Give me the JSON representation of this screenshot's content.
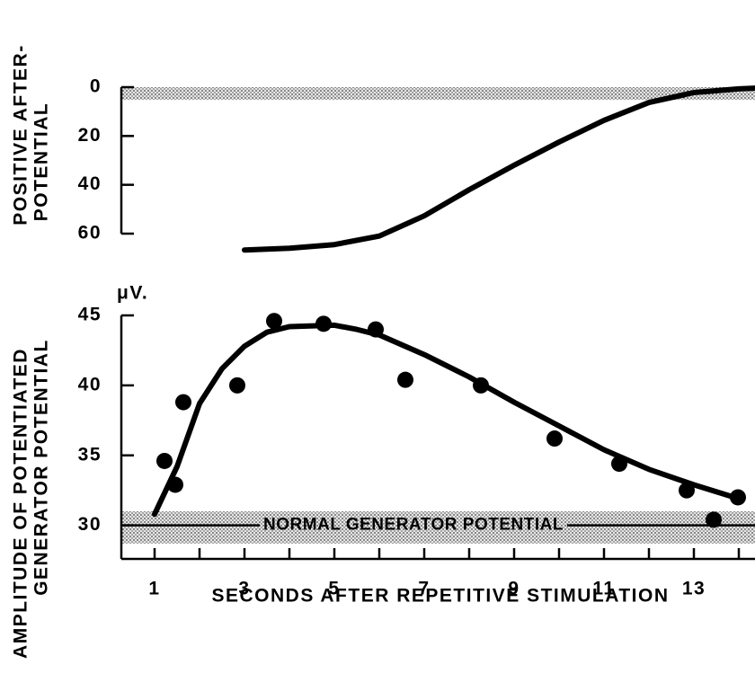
{
  "chart_data": [
    {
      "type": "line",
      "ylabel": [
        "POSITIVE AFTER-",
        "POTENTIAL"
      ],
      "xlim": [
        0.26,
        14.36
      ],
      "ylim": [
        0,
        60
      ],
      "y_inverted": true,
      "yticks": [
        0,
        20,
        40,
        60
      ],
      "band": [
        0,
        5.2
      ],
      "color": "#000000",
      "x": [
        3,
        4,
        5,
        6,
        7,
        8,
        9,
        10,
        11,
        12,
        13,
        14,
        14.36
      ],
      "values": [
        66.7,
        66,
        64.5,
        61,
        52.7,
        42,
        32,
        22.5,
        13.6,
        6.3,
        2.2,
        0.7,
        0.4
      ]
    },
    {
      "type": "scatter",
      "ylabel": [
        "AMPLITUDE OF POTENTIATED",
        "GENERATOR POTENTIAL"
      ],
      "unit": "μV.",
      "xlabel": "SECONDS AFTER REPETITIVE STIMULATION",
      "xlim": [
        0.26,
        14.36
      ],
      "ylim": [
        27.6,
        45
      ],
      "xticks": [
        1,
        3,
        5,
        7,
        9,
        11,
        13
      ],
      "xminorticks": [
        2,
        4,
        6,
        8,
        10,
        12,
        14
      ],
      "yticks": [
        30,
        35,
        40,
        45
      ],
      "band": [
        28.7,
        31
      ],
      "reference_line": {
        "value": 30,
        "label": "NORMAL GENERATOR POTENTIAL"
      },
      "color": "#000000",
      "points": {
        "x": [
          1.22,
          1.46,
          1.64,
          2.84,
          3.66,
          4.76,
          5.92,
          6.58,
          8.26,
          9.9,
          11.34,
          12.84,
          13.44,
          13.98
        ],
        "values": [
          34.6,
          32.9,
          38.8,
          40.0,
          44.6,
          44.4,
          44.0,
          40.4,
          40.0,
          36.2,
          34.4,
          32.5,
          30.4,
          32.0
        ]
      },
      "curve": {
        "x": [
          1,
          1.5,
          2,
          2.5,
          3,
          3.5,
          4,
          5,
          5.5,
          6,
          7,
          8,
          9,
          10,
          11,
          12,
          13,
          14
        ],
        "values": [
          30.8,
          34.2,
          38.7,
          41.2,
          42.8,
          43.8,
          44.2,
          44.3,
          44.0,
          43.6,
          42.2,
          40.6,
          38.8,
          37.1,
          35.4,
          34.0,
          32.9,
          31.9
        ]
      }
    }
  ]
}
